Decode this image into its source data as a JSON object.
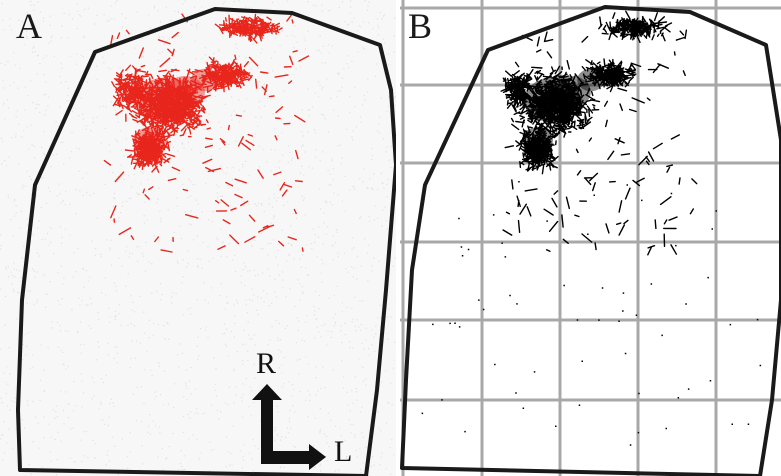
{
  "panels": [
    {
      "label": "A",
      "color": "#e8261c",
      "description_name": "fluorescence-panel"
    },
    {
      "label": "B",
      "color": "#000000",
      "description_name": "thresholded-grid-panel"
    }
  ],
  "orientation": {
    "up_label": "R",
    "right_label": "L"
  },
  "colors": {
    "outline": "#1a1a1a",
    "grid": "#a8a8a8",
    "signal_a": "#e8261c",
    "signal_b": "#000000",
    "background_a": "#f7f7f7"
  },
  "icons": [
    "orientation-arrow-icon"
  ]
}
